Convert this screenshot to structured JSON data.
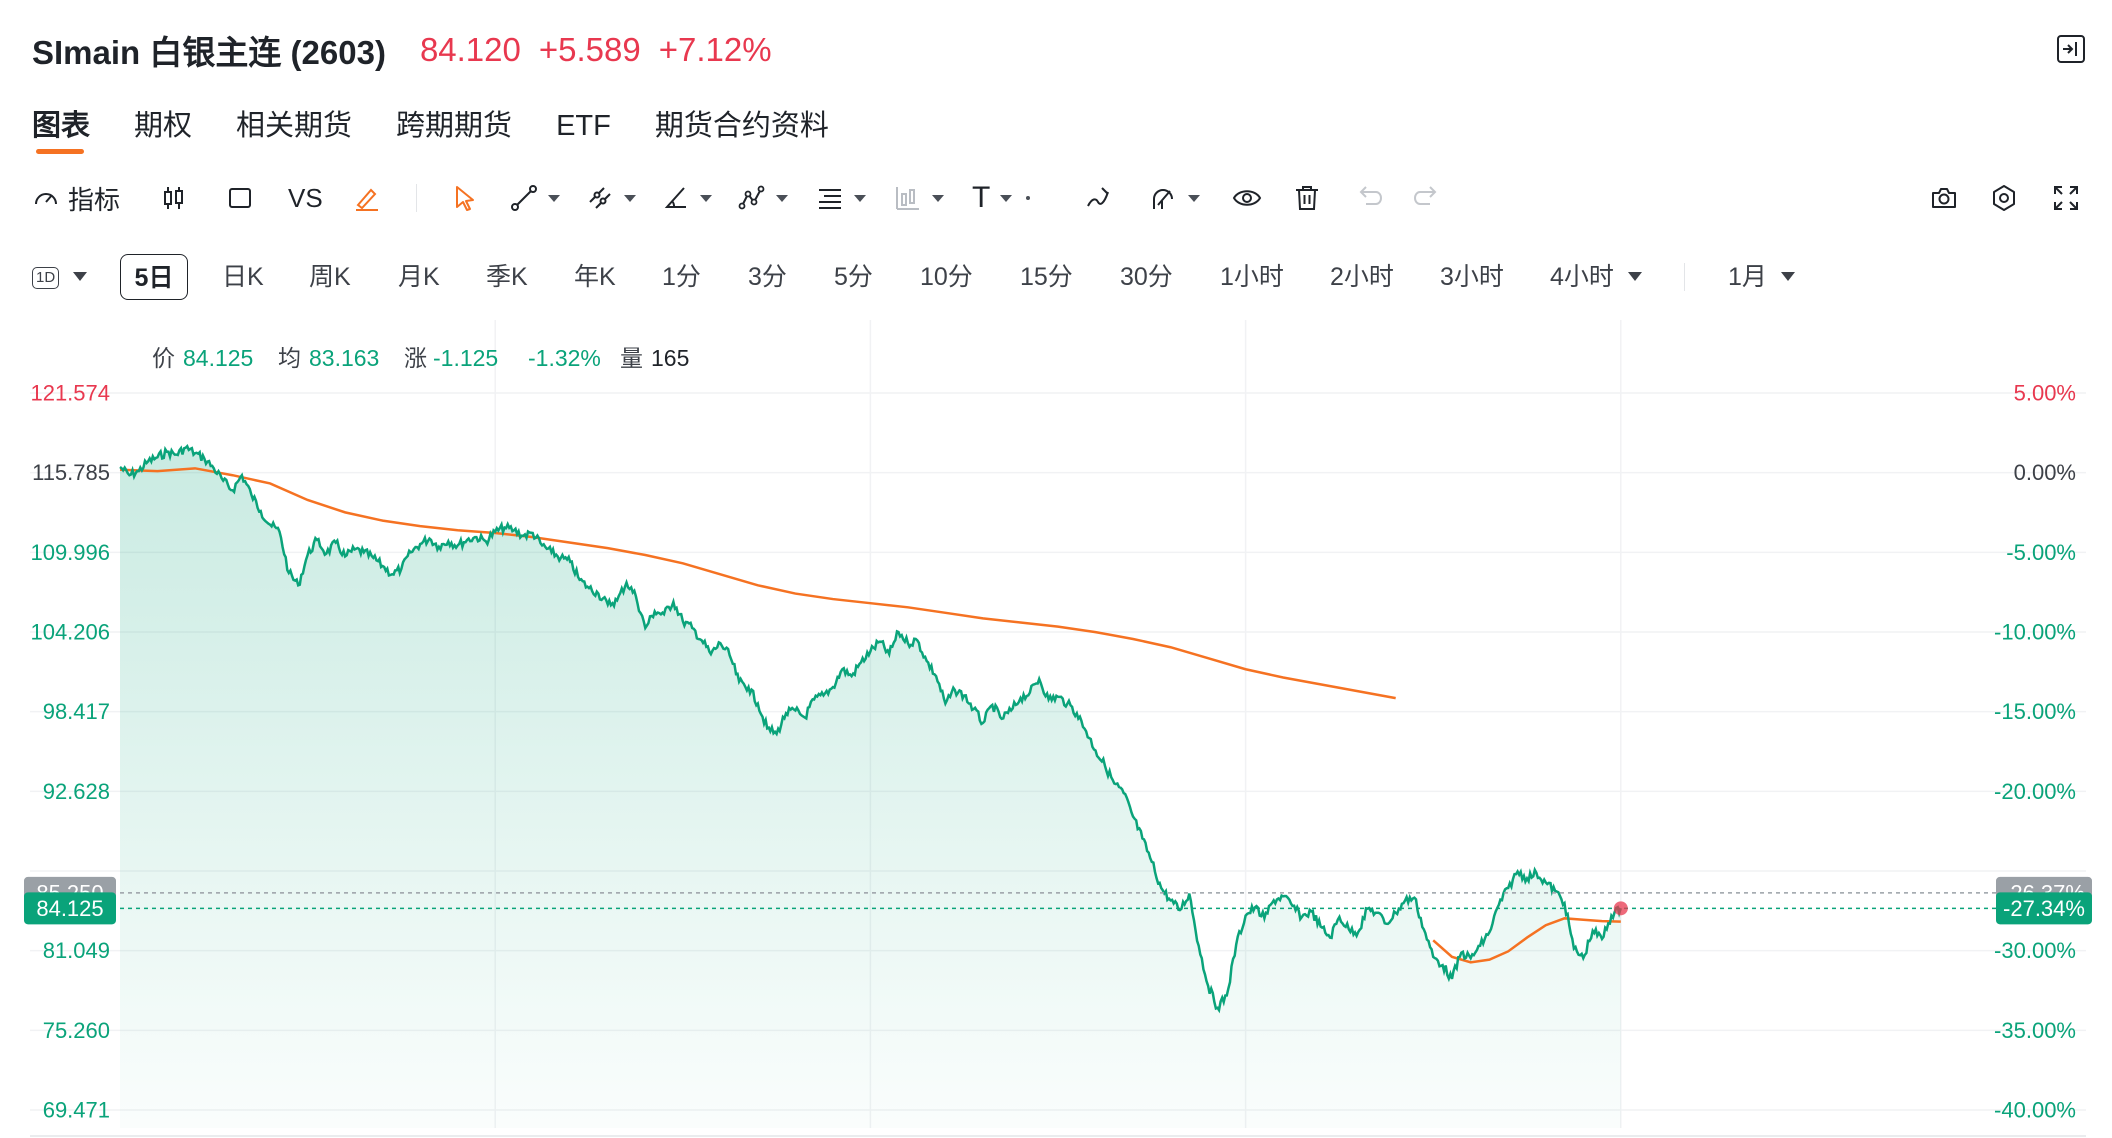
{
  "header": {
    "title": "SImain 白银主连 (2603)",
    "price": "84.120",
    "change": "+5.589",
    "change_pct": "+7.12%",
    "up_color": "#e8384f",
    "down_color": "#0aa37a",
    "expand_icon": "panel-expand-icon"
  },
  "tabs": [
    {
      "label": "图表",
      "active": true
    },
    {
      "label": "期权"
    },
    {
      "label": "相关期货"
    },
    {
      "label": "跨期期货"
    },
    {
      "label": "ETF"
    },
    {
      "label": "期货合约资料"
    }
  ],
  "toolbar": {
    "indicator_label": "指标",
    "vs_label": "VS",
    "text_tool_label": "T",
    "icons": [
      "indicator-gauge-icon",
      "candlestick-icon",
      "square-icon",
      "brush-icon",
      "cursor-icon",
      "trend-line-icon",
      "multi-line-icon",
      "angle-icon",
      "pattern-icon",
      "fib-icon",
      "bar-pattern-icon",
      "text-icon",
      "freehand-icon",
      "magnet-icon",
      "eye-icon",
      "trash-icon",
      "undo-icon",
      "redo-icon",
      "camera-icon",
      "settings-icon",
      "fullscreen-icon"
    ],
    "accent_color": "#f57222"
  },
  "periods": {
    "selector_label": "1D",
    "items": [
      "5日",
      "日K",
      "周K",
      "月K",
      "季K",
      "年K",
      "1分",
      "3分",
      "5分",
      "10分",
      "15分",
      "30分",
      "1小时",
      "2小时",
      "3小时",
      "4小时"
    ],
    "active": "5日",
    "range_label": "1月"
  },
  "chart_data": {
    "type": "line",
    "info": {
      "price_label": "价",
      "price": "84.125",
      "avg_label": "均",
      "avg": "83.163",
      "change_label": "涨",
      "change": "-1.125",
      "change_pct": "-1.32%",
      "volume_label": "量",
      "volume": "165"
    },
    "left_ticks": [
      "121.574",
      "115.785",
      "109.996",
      "104.206",
      "98.417",
      "92.628",
      "81.049",
      "75.260",
      "69.471"
    ],
    "right_ticks": [
      "5.00%",
      "0.00%",
      "-5.00%",
      "-10.00%",
      "-15.00%",
      "-20.00%",
      "-30.00%",
      "-35.00%",
      "-40.00%"
    ],
    "ylim": [
      69.471,
      121.574
    ],
    "prev_close": 115.785,
    "prev_close_ref": {
      "value": 85.25,
      "label": "85.250",
      "pct": "-26.37%"
    },
    "current": {
      "value": 84.125,
      "label": "84.125",
      "pct": "-27.34%"
    },
    "sessions": 5,
    "series": [
      {
        "name": "价",
        "color": "#0aa37a",
        "values": [
          [
            0.0,
            116.2
          ],
          [
            0.005,
            115.6
          ],
          [
            0.01,
            115.9
          ],
          [
            0.015,
            116.6
          ],
          [
            0.02,
            116.9
          ],
          [
            0.025,
            117.3
          ],
          [
            0.03,
            117.1
          ],
          [
            0.035,
            117.6
          ],
          [
            0.04,
            117.2
          ],
          [
            0.045,
            116.8
          ],
          [
            0.05,
            116.1
          ],
          [
            0.055,
            115.2
          ],
          [
            0.06,
            114.5
          ],
          [
            0.065,
            115.6
          ],
          [
            0.07,
            114.2
          ],
          [
            0.075,
            113.0
          ],
          [
            0.08,
            112.0
          ],
          [
            0.085,
            111.5
          ],
          [
            0.09,
            108.5
          ],
          [
            0.095,
            107.6
          ],
          [
            0.1,
            109.8
          ],
          [
            0.105,
            110.9
          ],
          [
            0.11,
            109.9
          ],
          [
            0.115,
            110.7
          ],
          [
            0.12,
            109.7
          ],
          [
            0.125,
            110.2
          ],
          [
            0.13,
            110.0
          ],
          [
            0.135,
            109.6
          ],
          [
            0.14,
            109.0
          ],
          [
            0.145,
            108.4
          ],
          [
            0.15,
            108.8
          ],
          [
            0.155,
            110.0
          ],
          [
            0.16,
            110.6
          ],
          [
            0.165,
            111.0
          ],
          [
            0.17,
            110.4
          ],
          [
            0.175,
            110.8
          ],
          [
            0.18,
            110.5
          ],
          [
            0.185,
            110.9
          ],
          [
            0.19,
            111.1
          ],
          [
            0.195,
            110.8
          ],
          [
            0.2,
            111.5
          ],
          [
            0.205,
            111.8
          ],
          [
            0.21,
            111.6
          ],
          [
            0.215,
            111.2
          ],
          [
            0.22,
            111.4
          ],
          [
            0.225,
            110.5
          ],
          [
            0.23,
            110.0
          ],
          [
            0.235,
            109.6
          ],
          [
            0.24,
            109.3
          ],
          [
            0.245,
            108.0
          ],
          [
            0.25,
            107.4
          ],
          [
            0.255,
            107.0
          ],
          [
            0.26,
            106.2
          ],
          [
            0.265,
            106.5
          ],
          [
            0.27,
            107.8
          ],
          [
            0.275,
            106.8
          ],
          [
            0.28,
            104.5
          ],
          [
            0.285,
            105.7
          ],
          [
            0.29,
            105.5
          ],
          [
            0.295,
            106.4
          ],
          [
            0.3,
            105.0
          ],
          [
            0.305,
            104.5
          ],
          [
            0.31,
            103.6
          ],
          [
            0.315,
            102.6
          ],
          [
            0.32,
            103.4
          ],
          [
            0.325,
            102.5
          ],
          [
            0.33,
            100.6
          ],
          [
            0.335,
            100.2
          ],
          [
            0.34,
            99.0
          ],
          [
            0.345,
            97.2
          ],
          [
            0.35,
            96.8
          ],
          [
            0.355,
            98.3
          ],
          [
            0.36,
            98.5
          ],
          [
            0.365,
            98.0
          ],
          [
            0.37,
            99.3
          ],
          [
            0.375,
            99.6
          ],
          [
            0.38,
            100.2
          ],
          [
            0.385,
            101.5
          ],
          [
            0.39,
            101.0
          ],
          [
            0.395,
            102.0
          ],
          [
            0.4,
            102.8
          ],
          [
            0.405,
            103.5
          ],
          [
            0.41,
            102.6
          ],
          [
            0.415,
            104.2
          ],
          [
            0.42,
            103.4
          ],
          [
            0.425,
            103.6
          ],
          [
            0.43,
            102.1
          ],
          [
            0.435,
            101.0
          ],
          [
            0.44,
            99.0
          ],
          [
            0.445,
            100.0
          ],
          [
            0.45,
            99.6
          ],
          [
            0.455,
            98.6
          ],
          [
            0.46,
            97.6
          ],
          [
            0.465,
            98.9
          ],
          [
            0.47,
            97.9
          ],
          [
            0.475,
            98.5
          ],
          [
            0.48,
            99.4
          ],
          [
            0.485,
            99.8
          ],
          [
            0.49,
            100.8
          ],
          [
            0.495,
            99.3
          ],
          [
            0.5,
            99.5
          ],
          [
            0.505,
            99.0
          ],
          [
            0.51,
            98.3
          ],
          [
            0.515,
            97.0
          ],
          [
            0.52,
            95.6
          ],
          [
            0.525,
            94.5
          ],
          [
            0.53,
            93.2
          ],
          [
            0.535,
            92.5
          ],
          [
            0.54,
            90.8
          ],
          [
            0.545,
            89.2
          ],
          [
            0.55,
            87.5
          ],
          [
            0.555,
            85.6
          ],
          [
            0.56,
            84.7
          ],
          [
            0.565,
            84.0
          ],
          [
            0.57,
            85.2
          ],
          [
            0.575,
            81.4
          ],
          [
            0.58,
            78.5
          ],
          [
            0.585,
            76.9
          ],
          [
            0.59,
            77.8
          ],
          [
            0.595,
            81.5
          ],
          [
            0.6,
            83.6
          ],
          [
            0.605,
            84.2
          ],
          [
            0.61,
            83.4
          ],
          [
            0.615,
            84.7
          ],
          [
            0.62,
            85.0
          ],
          [
            0.625,
            84.3
          ],
          [
            0.63,
            83.5
          ],
          [
            0.635,
            83.9
          ],
          [
            0.64,
            82.8
          ],
          [
            0.645,
            82.0
          ],
          [
            0.65,
            83.5
          ],
          [
            0.655,
            82.6
          ],
          [
            0.66,
            82.4
          ],
          [
            0.665,
            84.1
          ],
          [
            0.67,
            83.8
          ],
          [
            0.675,
            83.0
          ],
          [
            0.68,
            83.8
          ],
          [
            0.685,
            84.7
          ],
          [
            0.69,
            84.9
          ],
          [
            0.695,
            82.6
          ],
          [
            0.7,
            80.6
          ],
          [
            0.705,
            80.0
          ],
          [
            0.71,
            79.0
          ],
          [
            0.715,
            80.9
          ],
          [
            0.72,
            80.5
          ],
          [
            0.725,
            81.4
          ],
          [
            0.73,
            82.4
          ],
          [
            0.735,
            84.4
          ],
          [
            0.74,
            85.6
          ],
          [
            0.745,
            86.8
          ],
          [
            0.75,
            86.3
          ],
          [
            0.755,
            86.7
          ],
          [
            0.76,
            86.0
          ],
          [
            0.765,
            85.4
          ],
          [
            0.77,
            84.5
          ],
          [
            0.775,
            81.2
          ],
          [
            0.78,
            80.5
          ],
          [
            0.785,
            82.5
          ],
          [
            0.79,
            81.9
          ],
          [
            0.795,
            83.6
          ],
          [
            0.8,
            84.125
          ]
        ]
      },
      {
        "name": "均",
        "color": "#f57222",
        "values": [
          [
            0.0,
            116.0
          ],
          [
            0.02,
            115.9
          ],
          [
            0.04,
            116.1
          ],
          [
            0.06,
            115.6
          ],
          [
            0.08,
            115.0
          ],
          [
            0.1,
            113.8
          ],
          [
            0.12,
            112.9
          ],
          [
            0.14,
            112.3
          ],
          [
            0.16,
            111.9
          ],
          [
            0.18,
            111.6
          ],
          [
            0.2,
            111.4
          ],
          [
            0.22,
            111.1
          ],
          [
            0.24,
            110.7
          ],
          [
            0.26,
            110.3
          ],
          [
            0.28,
            109.8
          ],
          [
            0.3,
            109.2
          ],
          [
            0.32,
            108.4
          ],
          [
            0.34,
            107.6
          ],
          [
            0.36,
            107.0
          ],
          [
            0.38,
            106.6
          ],
          [
            0.4,
            106.3
          ],
          [
            0.42,
            106.0
          ],
          [
            0.44,
            105.6
          ],
          [
            0.46,
            105.2
          ],
          [
            0.48,
            104.9
          ],
          [
            0.5,
            104.6
          ],
          [
            0.52,
            104.2
          ],
          [
            0.54,
            103.7
          ],
          [
            0.56,
            103.1
          ],
          [
            0.58,
            102.3
          ],
          [
            0.6,
            101.5
          ],
          [
            0.62,
            100.9
          ],
          [
            0.64,
            100.4
          ],
          [
            0.66,
            99.9
          ],
          [
            0.68,
            99.4
          ],
          [
            0.7,
            81.8
          ],
          [
            0.71,
            80.6
          ],
          [
            0.72,
            80.2
          ],
          [
            0.73,
            80.4
          ],
          [
            0.74,
            81.0
          ],
          [
            0.75,
            82.0
          ],
          [
            0.76,
            82.9
          ],
          [
            0.77,
            83.4
          ],
          [
            0.78,
            83.3
          ],
          [
            0.79,
            83.2
          ],
          [
            0.8,
            83.163
          ]
        ]
      }
    ],
    "colors": {
      "up": "#e8384f",
      "down": "#0aa37a",
      "avg": "#f57222",
      "neutral": "#1f2329"
    }
  }
}
